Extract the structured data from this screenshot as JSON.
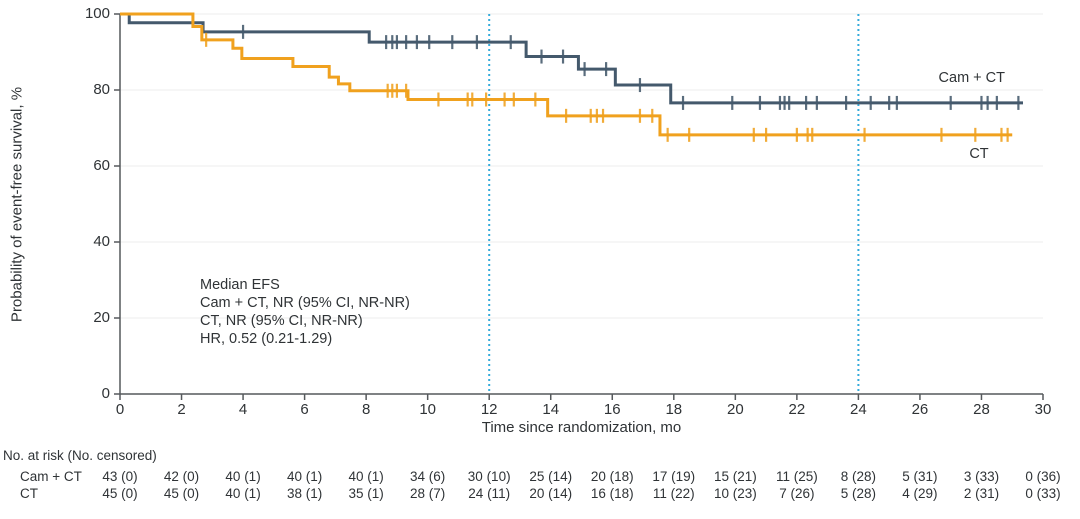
{
  "figure": {
    "y_axis": {
      "label": "Probability of event-free survival, %",
      "ticks": [
        0,
        20,
        40,
        60,
        80,
        100
      ]
    },
    "x_axis": {
      "label": "Time since randomization, mo",
      "ticks": [
        0,
        2,
        4,
        6,
        8,
        10,
        12,
        14,
        16,
        18,
        20,
        22,
        24,
        26,
        28,
        30
      ]
    },
    "annotation": {
      "lines": [
        "Median EFS",
        "Cam + CT, NR (95% CI, NR-NR)",
        "CT, NR (95% CI, NR-NR)",
        "HR, 0.52 (0.21-1.29)"
      ]
    },
    "series_labels": {
      "cam_ct": "Cam + CT",
      "ct": "CT"
    },
    "colors": {
      "cam_ct": "#44596C",
      "ct": "#F0A11E",
      "reference_line": "#35ABDB",
      "gridline": "#ECECEC",
      "axis": "#55595C",
      "text": "#2F3336"
    }
  },
  "chart_data": {
    "type": "line",
    "subtype": "kaplan-meier-step",
    "title": "",
    "xlabel": "Time since randomization, mo",
    "ylabel": "Probability of event-free survival, %",
    "xlim": [
      0,
      30
    ],
    "ylim": [
      0,
      100
    ],
    "grid": "horizontal",
    "reference_lines_x": [
      12,
      24
    ],
    "series": [
      {
        "name": "Cam + CT",
        "color": "#44596C",
        "levels": [
          {
            "t0": 0,
            "t1": 0.3,
            "pct": 100
          },
          {
            "t0": 0.3,
            "t1": 2.7,
            "pct": 97.7
          },
          {
            "t0": 2.7,
            "t1": 8.1,
            "pct": 95.3
          },
          {
            "t0": 8.1,
            "t1": 13.2,
            "pct": 92.6
          },
          {
            "t0": 13.2,
            "t1": 14.9,
            "pct": 88.8
          },
          {
            "t0": 14.9,
            "t1": 16.1,
            "pct": 85.5
          },
          {
            "t0": 16.1,
            "t1": 17.9,
            "pct": 81.3
          },
          {
            "t0": 17.9,
            "t1": 29.35,
            "pct": 76.6
          }
        ],
        "censor_marks": [
          {
            "t": 4.0,
            "pct": 95.3
          },
          {
            "t": 8.65,
            "pct": 92.6
          },
          {
            "t": 8.85,
            "pct": 92.6
          },
          {
            "t": 9.0,
            "pct": 92.6
          },
          {
            "t": 9.3,
            "pct": 92.6
          },
          {
            "t": 9.65,
            "pct": 92.6
          },
          {
            "t": 10.05,
            "pct": 92.6
          },
          {
            "t": 10.8,
            "pct": 92.6
          },
          {
            "t": 11.6,
            "pct": 92.6
          },
          {
            "t": 12.7,
            "pct": 92.6
          },
          {
            "t": 13.7,
            "pct": 88.8
          },
          {
            "t": 14.4,
            "pct": 88.8
          },
          {
            "t": 15.1,
            "pct": 85.5
          },
          {
            "t": 15.8,
            "pct": 85.5
          },
          {
            "t": 16.9,
            "pct": 81.3
          },
          {
            "t": 18.3,
            "pct": 76.6
          },
          {
            "t": 19.9,
            "pct": 76.6
          },
          {
            "t": 20.8,
            "pct": 76.6
          },
          {
            "t": 21.45,
            "pct": 76.6
          },
          {
            "t": 21.6,
            "pct": 76.6
          },
          {
            "t": 21.75,
            "pct": 76.6
          },
          {
            "t": 22.3,
            "pct": 76.6
          },
          {
            "t": 22.65,
            "pct": 76.6
          },
          {
            "t": 23.6,
            "pct": 76.6
          },
          {
            "t": 24.4,
            "pct": 76.6
          },
          {
            "t": 25.0,
            "pct": 76.6
          },
          {
            "t": 25.25,
            "pct": 76.6
          },
          {
            "t": 27.0,
            "pct": 76.6
          },
          {
            "t": 28.0,
            "pct": 76.6
          },
          {
            "t": 28.2,
            "pct": 76.6
          },
          {
            "t": 28.5,
            "pct": 76.6
          },
          {
            "t": 29.2,
            "pct": 76.6
          }
        ]
      },
      {
        "name": "CT",
        "color": "#F0A11E",
        "levels": [
          {
            "t0": 0,
            "t1": 2.37,
            "pct": 100
          },
          {
            "t0": 2.37,
            "t1": 2.66,
            "pct": 96.7
          },
          {
            "t0": 2.66,
            "t1": 3.67,
            "pct": 93.2
          },
          {
            "t0": 3.67,
            "t1": 3.96,
            "pct": 91.0
          },
          {
            "t0": 3.96,
            "t1": 5.62,
            "pct": 88.3
          },
          {
            "t0": 5.62,
            "t1": 6.8,
            "pct": 86.2
          },
          {
            "t0": 6.8,
            "t1": 7.1,
            "pct": 83.4
          },
          {
            "t0": 7.1,
            "t1": 7.47,
            "pct": 81.6
          },
          {
            "t0": 7.47,
            "t1": 9.36,
            "pct": 79.8
          },
          {
            "t0": 9.36,
            "t1": 13.9,
            "pct": 77.5
          },
          {
            "t0": 13.9,
            "t1": 17.55,
            "pct": 73.2
          },
          {
            "t0": 17.55,
            "t1": 29.0,
            "pct": 68.2
          }
        ],
        "censor_marks": [
          {
            "t": 2.8,
            "pct": 93.2
          },
          {
            "t": 8.7,
            "pct": 79.8
          },
          {
            "t": 8.85,
            "pct": 79.8
          },
          {
            "t": 9.0,
            "pct": 79.8
          },
          {
            "t": 9.3,
            "pct": 79.8
          },
          {
            "t": 10.35,
            "pct": 77.5
          },
          {
            "t": 11.3,
            "pct": 77.5
          },
          {
            "t": 11.45,
            "pct": 77.5
          },
          {
            "t": 11.9,
            "pct": 77.5
          },
          {
            "t": 12.5,
            "pct": 77.5
          },
          {
            "t": 12.8,
            "pct": 77.5
          },
          {
            "t": 13.5,
            "pct": 77.5
          },
          {
            "t": 14.5,
            "pct": 73.2
          },
          {
            "t": 15.3,
            "pct": 73.2
          },
          {
            "t": 15.5,
            "pct": 73.2
          },
          {
            "t": 15.7,
            "pct": 73.2
          },
          {
            "t": 16.9,
            "pct": 73.2
          },
          {
            "t": 17.3,
            "pct": 73.2
          },
          {
            "t": 17.8,
            "pct": 68.2
          },
          {
            "t": 18.5,
            "pct": 68.2
          },
          {
            "t": 20.6,
            "pct": 68.2
          },
          {
            "t": 21.0,
            "pct": 68.2
          },
          {
            "t": 22.0,
            "pct": 68.2
          },
          {
            "t": 22.35,
            "pct": 68.2
          },
          {
            "t": 22.5,
            "pct": 68.2
          },
          {
            "t": 24.2,
            "pct": 68.2
          },
          {
            "t": 26.7,
            "pct": 68.2
          },
          {
            "t": 27.8,
            "pct": 68.2
          },
          {
            "t": 28.65,
            "pct": 68.2
          },
          {
            "t": 28.85,
            "pct": 68.2
          }
        ]
      }
    ]
  },
  "risk_table": {
    "header": "No. at risk (No. censored)",
    "times": [
      0,
      2,
      4,
      6,
      8,
      10,
      12,
      14,
      16,
      18,
      20,
      22,
      24,
      26,
      28,
      30
    ],
    "rows": [
      {
        "label": "Cam + CT",
        "values": [
          "43 (0)",
          "42 (0)",
          "40 (1)",
          "40 (1)",
          "40 (1)",
          "34 (6)",
          "30 (10)",
          "25 (14)",
          "20 (18)",
          "17 (19)",
          "15 (21)",
          "11 (25)",
          "8 (28)",
          "5 (31)",
          "3 (33)",
          "0 (36)"
        ]
      },
      {
        "label": "CT",
        "values": [
          "45 (0)",
          "45 (0)",
          "40 (1)",
          "38 (1)",
          "35 (1)",
          "28 (7)",
          "24 (11)",
          "20 (14)",
          "16 (18)",
          "11 (22)",
          "10 (23)",
          "7 (26)",
          "5 (28)",
          "4 (29)",
          "2 (31)",
          "0 (33)"
        ]
      }
    ]
  }
}
